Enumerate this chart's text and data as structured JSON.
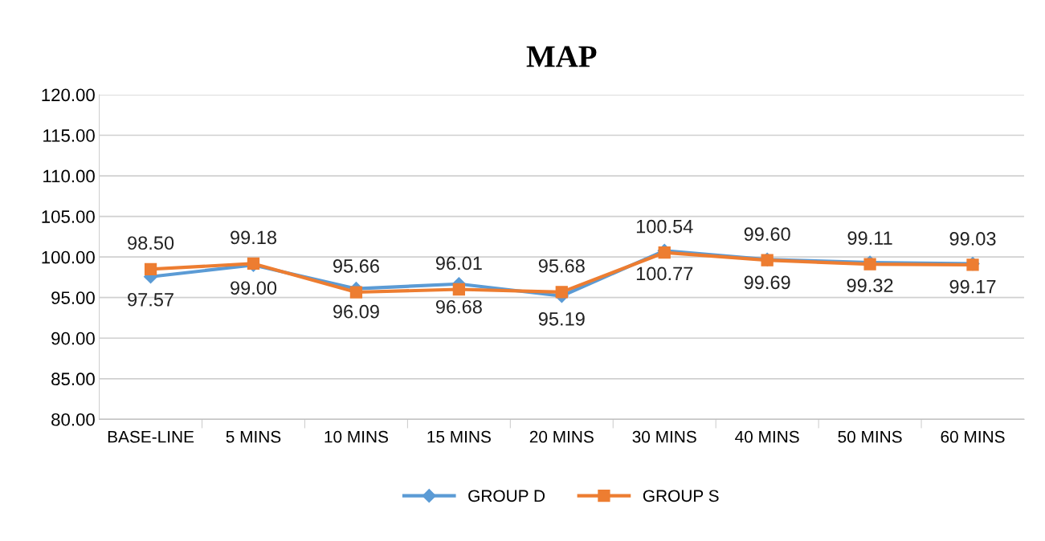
{
  "chart_data": {
    "type": "line",
    "title": "MAP",
    "categories": [
      "BASE-LINE",
      "5 MINS",
      "10 MINS",
      "15 MINS",
      "20 MINS",
      "30 MINS",
      "40 MINS",
      "50 MINS",
      "60 MINS"
    ],
    "series": [
      {
        "name": "GROUP D",
        "color": "#5b9bd5",
        "marker": "diamond",
        "values": [
          97.57,
          99.0,
          96.09,
          96.68,
          95.19,
          100.77,
          99.69,
          99.32,
          99.17
        ],
        "value_labels": [
          "97.57",
          "99.00",
          "96.09",
          "96.68",
          "95.19",
          "100.77",
          "99.69",
          "99.32",
          "99.17"
        ]
      },
      {
        "name": "GROUP S",
        "color": "#ed7d31",
        "marker": "square",
        "values": [
          98.5,
          99.18,
          95.66,
          96.01,
          95.68,
          100.54,
          99.6,
          99.11,
          99.03
        ],
        "value_labels": [
          "98.50",
          "99.18",
          "95.66",
          "96.01",
          "95.68",
          "100.54",
          "99.60",
          "99.11",
          "99.03"
        ]
      }
    ],
    "ylim": [
      80,
      120
    ],
    "yticks": [
      {
        "value": 80,
        "label": "80.00"
      },
      {
        "value": 85,
        "label": "85.00"
      },
      {
        "value": 90,
        "label": "90.00"
      },
      {
        "value": 95,
        "label": "95.00"
      },
      {
        "value": 100,
        "label": "100.00"
      },
      {
        "value": 105,
        "label": "105.00"
      },
      {
        "value": 110,
        "label": "110.00"
      },
      {
        "value": 115,
        "label": "115.00"
      },
      {
        "value": 120,
        "label": "120.00"
      }
    ],
    "grid": "y",
    "legend": "bottom",
    "line_style": "solid"
  }
}
